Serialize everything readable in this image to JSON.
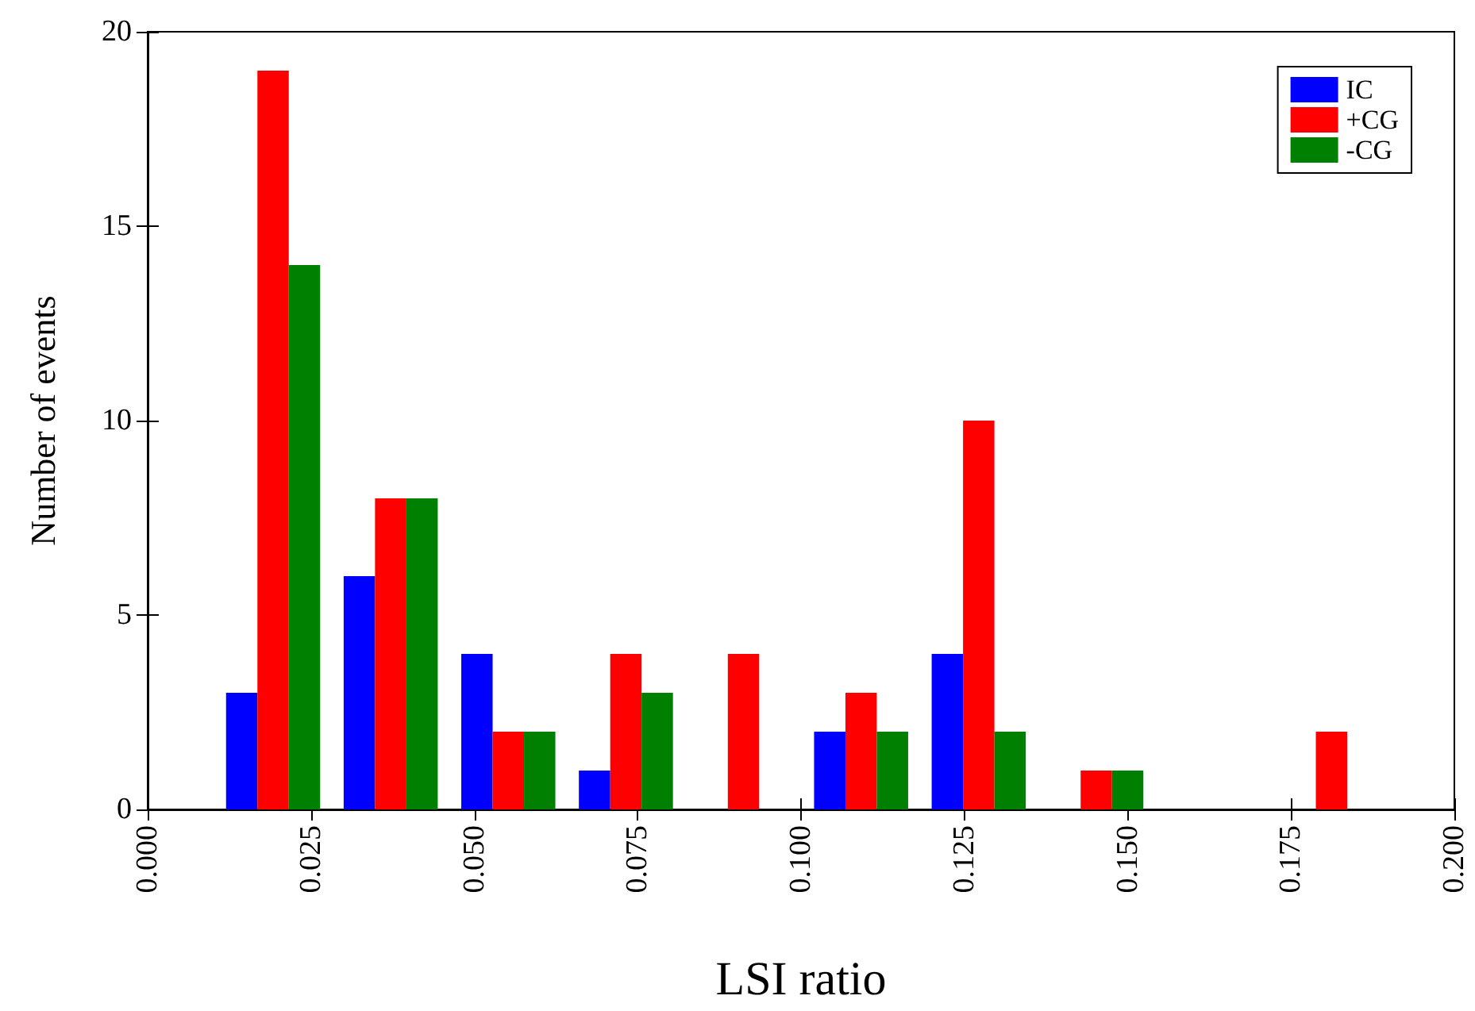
{
  "chart_data": {
    "type": "histogram",
    "xlabel": "LSI ratio",
    "ylabel": "Number of events",
    "bins": [
      0.012,
      0.03,
      0.048,
      0.066,
      0.084,
      0.102,
      0.12,
      0.138,
      0.156,
      0.174,
      0.192
    ],
    "series": [
      {
        "name": "IC",
        "color": "#0000ff",
        "values": [
          3,
          6,
          4,
          1,
          0,
          2,
          4,
          0,
          0,
          0
        ]
      },
      {
        "name": "+CG",
        "color": "#ff0000",
        "values": [
          19,
          8,
          2,
          4,
          4,
          3,
          10,
          1,
          0,
          2
        ]
      },
      {
        "name": "-CG",
        "color": "#008000",
        "values": [
          14,
          8,
          2,
          3,
          0,
          2,
          2,
          1,
          0,
          0
        ]
      }
    ],
    "xlim": [
      0,
      0.2
    ],
    "xticks": [
      {
        "value": 0,
        "label": "0.000"
      },
      {
        "value": 0.025,
        "label": "0.025"
      },
      {
        "value": 0.05,
        "label": "0.050"
      },
      {
        "value": 0.075,
        "label": "0.075"
      },
      {
        "value": 0.1,
        "label": "0.100"
      },
      {
        "value": 0.125,
        "label": "0.125"
      },
      {
        "value": 0.15,
        "label": "0.150"
      },
      {
        "value": 0.175,
        "label": "0.175"
      },
      {
        "value": 0.2,
        "label": "0.200"
      }
    ],
    "ylim": [
      0,
      20
    ],
    "yticks": [
      0,
      5,
      10,
      15,
      20
    ],
    "grid": false,
    "legend": "top right"
  }
}
